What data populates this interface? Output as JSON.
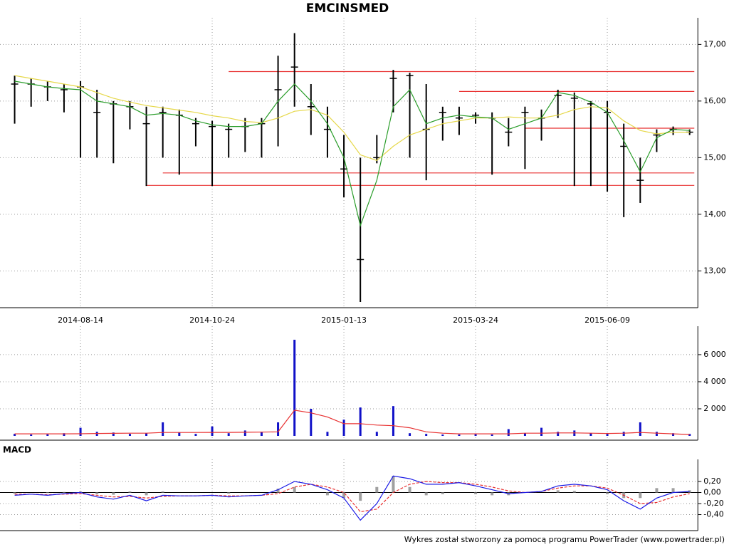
{
  "chart_data": [
    {
      "type": "candlestick",
      "title": "EMCINSMED",
      "categories": [
        null,
        null,
        null,
        null,
        "2014-08-14",
        null,
        null,
        null,
        null,
        null,
        null,
        null,
        "2014-10-24",
        null,
        null,
        null,
        null,
        null,
        null,
        null,
        "2015-01-13",
        null,
        null,
        null,
        null,
        null,
        null,
        null,
        "2015-03-24",
        null,
        null,
        null,
        null,
        null,
        null,
        null,
        "2015-06-09",
        null,
        null,
        null,
        null,
        null
      ],
      "high": [
        16.45,
        16.4,
        16.35,
        16.3,
        16.35,
        16.2,
        16.0,
        16.0,
        15.9,
        15.9,
        15.85,
        15.7,
        15.65,
        15.6,
        15.7,
        15.7,
        16.8,
        17.2,
        16.3,
        15.9,
        15.4,
        15.0,
        15.4,
        16.55,
        16.5,
        16.3,
        15.9,
        15.9,
        15.8,
        15.8,
        15.7,
        15.9,
        15.85,
        16.2,
        16.15,
        16.0,
        16.0,
        15.6,
        15.0,
        15.5,
        15.55,
        15.5
      ],
      "low": [
        15.6,
        15.9,
        16.0,
        15.8,
        15.0,
        15.0,
        14.9,
        15.5,
        14.5,
        15.0,
        14.7,
        15.2,
        14.5,
        15.0,
        15.1,
        15.0,
        15.2,
        15.9,
        15.4,
        15.0,
        14.3,
        12.45,
        14.9,
        15.8,
        15.0,
        14.6,
        15.3,
        15.4,
        15.6,
        14.7,
        15.2,
        14.8,
        15.3,
        15.7,
        14.5,
        14.5,
        14.4,
        13.95,
        14.2,
        15.1,
        15.4,
        15.4
      ],
      "close": [
        16.3,
        16.3,
        16.25,
        16.2,
        16.25,
        15.8,
        15.95,
        15.9,
        15.6,
        15.8,
        15.75,
        15.6,
        15.55,
        15.5,
        15.55,
        15.6,
        16.2,
        16.6,
        15.9,
        15.5,
        14.8,
        13.2,
        15.0,
        16.4,
        16.45,
        15.5,
        15.8,
        15.7,
        15.75,
        15.7,
        15.45,
        15.8,
        15.7,
        16.1,
        16.05,
        15.95,
        15.8,
        15.2,
        14.6,
        15.4,
        15.5,
        15.45
      ],
      "ma_lines": [
        {
          "color": "#e6d84a",
          "values": [
            16.45,
            16.4,
            16.35,
            16.3,
            16.25,
            16.15,
            16.05,
            15.98,
            15.92,
            15.88,
            15.84,
            15.8,
            15.74,
            15.7,
            15.64,
            15.62,
            15.7,
            15.82,
            15.85,
            15.75,
            15.45,
            15.05,
            14.95,
            15.2,
            15.4,
            15.5,
            15.6,
            15.65,
            15.7,
            15.7,
            15.72,
            15.7,
            15.7,
            15.75,
            15.85,
            15.9,
            15.88,
            15.65,
            15.48,
            15.42,
            15.45,
            15.45
          ]
        },
        {
          "color": "#2a9d2a",
          "values": [
            16.35,
            16.3,
            16.25,
            16.22,
            16.2,
            16.0,
            15.95,
            15.9,
            15.75,
            15.78,
            15.75,
            15.65,
            15.58,
            15.55,
            15.55,
            15.6,
            16.0,
            16.3,
            16.0,
            15.6,
            15.0,
            13.8,
            14.6,
            15.9,
            16.2,
            15.6,
            15.7,
            15.75,
            15.72,
            15.7,
            15.5,
            15.6,
            15.7,
            16.15,
            16.1,
            15.98,
            15.8,
            15.3,
            14.75,
            15.35,
            15.5,
            15.48
          ]
        }
      ],
      "levels": [
        16.52,
        16.17,
        15.52,
        14.73,
        14.51
      ],
      "level_starts": [
        13,
        27,
        31,
        9,
        8
      ],
      "level_color": "#e83030",
      "ylim": [
        12.35,
        17.47
      ],
      "yticks": [
        {
          "value": 13,
          "label": "13,00"
        },
        {
          "value": 14,
          "label": "14,00"
        },
        {
          "value": 15,
          "label": "15,00"
        },
        {
          "value": 16,
          "label": "16,00"
        },
        {
          "value": 17,
          "label": "17,00"
        }
      ]
    },
    {
      "type": "bar",
      "color": "#1010c8",
      "ma_color": "#e83030",
      "values": [
        150,
        100,
        120,
        200,
        600,
        300,
        250,
        150,
        200,
        1000,
        250,
        150,
        700,
        200,
        400,
        300,
        1000,
        7100,
        2000,
        300,
        1200,
        2100,
        300,
        2200,
        200,
        150,
        100,
        100,
        150,
        100,
        500,
        200,
        600,
        300,
        400,
        200,
        150,
        300,
        1000,
        300,
        200,
        150
      ],
      "ma_values": [
        150,
        150,
        150,
        150,
        160,
        180,
        190,
        200,
        200,
        250,
        250,
        250,
        260,
        260,
        270,
        280,
        300,
        1900,
        1700,
        1400,
        900,
        900,
        800,
        750,
        600,
        300,
        200,
        150,
        150,
        150,
        150,
        200,
        200,
        220,
        220,
        200,
        180,
        200,
        250,
        200,
        150,
        100
      ],
      "ylim": [
        0,
        8100
      ],
      "yticks": [
        {
          "value": 2000,
          "label": "2 000"
        },
        {
          "value": 4000,
          "label": "4 000"
        },
        {
          "value": 6000,
          "label": "6 000"
        }
      ]
    },
    {
      "type": "macd",
      "title": "MACD",
      "macd_color": "#1a1ae6",
      "signal_color": "#e83030",
      "hist_color": "#a0a0a0",
      "macd": [
        -0.05,
        -0.03,
        -0.05,
        -0.02,
        0.0,
        -0.08,
        -0.12,
        -0.05,
        -0.15,
        -0.05,
        -0.06,
        -0.06,
        -0.05,
        -0.08,
        -0.06,
        -0.05,
        0.05,
        0.2,
        0.15,
        0.05,
        -0.1,
        -0.5,
        -0.2,
        0.3,
        0.25,
        0.15,
        0.15,
        0.18,
        0.12,
        0.05,
        -0.02,
        0.0,
        0.02,
        0.12,
        0.15,
        0.12,
        0.05,
        -0.15,
        -0.3,
        -0.1,
        0.0,
        0.02
      ],
      "signal": [
        -0.03,
        -0.03,
        -0.04,
        -0.03,
        -0.02,
        -0.05,
        -0.08,
        -0.07,
        -0.1,
        -0.07,
        -0.06,
        -0.06,
        -0.05,
        -0.06,
        -0.06,
        -0.05,
        -0.02,
        0.1,
        0.15,
        0.1,
        0.0,
        -0.35,
        -0.3,
        0.0,
        0.15,
        0.2,
        0.18,
        0.18,
        0.15,
        0.1,
        0.03,
        0.0,
        0.02,
        0.08,
        0.12,
        0.12,
        0.08,
        -0.05,
        -0.2,
        -0.18,
        -0.08,
        -0.02
      ],
      "histogram": [
        -0.02,
        0,
        -0.01,
        0.01,
        0.02,
        -0.03,
        -0.04,
        0.02,
        -0.05,
        0.02,
        0,
        0,
        0,
        -0.02,
        0,
        0,
        0.07,
        0.1,
        0,
        -0.05,
        -0.1,
        -0.15,
        0.1,
        0.3,
        0.1,
        -0.05,
        -0.03,
        0,
        -0.03,
        -0.05,
        -0.05,
        0,
        0,
        0.04,
        0.03,
        0,
        -0.03,
        -0.1,
        -0.1,
        0.08,
        0.08,
        0.04
      ],
      "ylim": [
        -0.69,
        0.6
      ],
      "yticks": [
        {
          "value": 0.2,
          "label": "0,20"
        },
        {
          "value": 0,
          "label": "0,00"
        },
        {
          "value": -0.2,
          "label": "-0,20"
        },
        {
          "value": -0.4,
          "label": "-0,40"
        }
      ]
    }
  ],
  "footer": "Wykres został stworzony za pomocą programu PowerTrader (www.powertrader.pl)"
}
